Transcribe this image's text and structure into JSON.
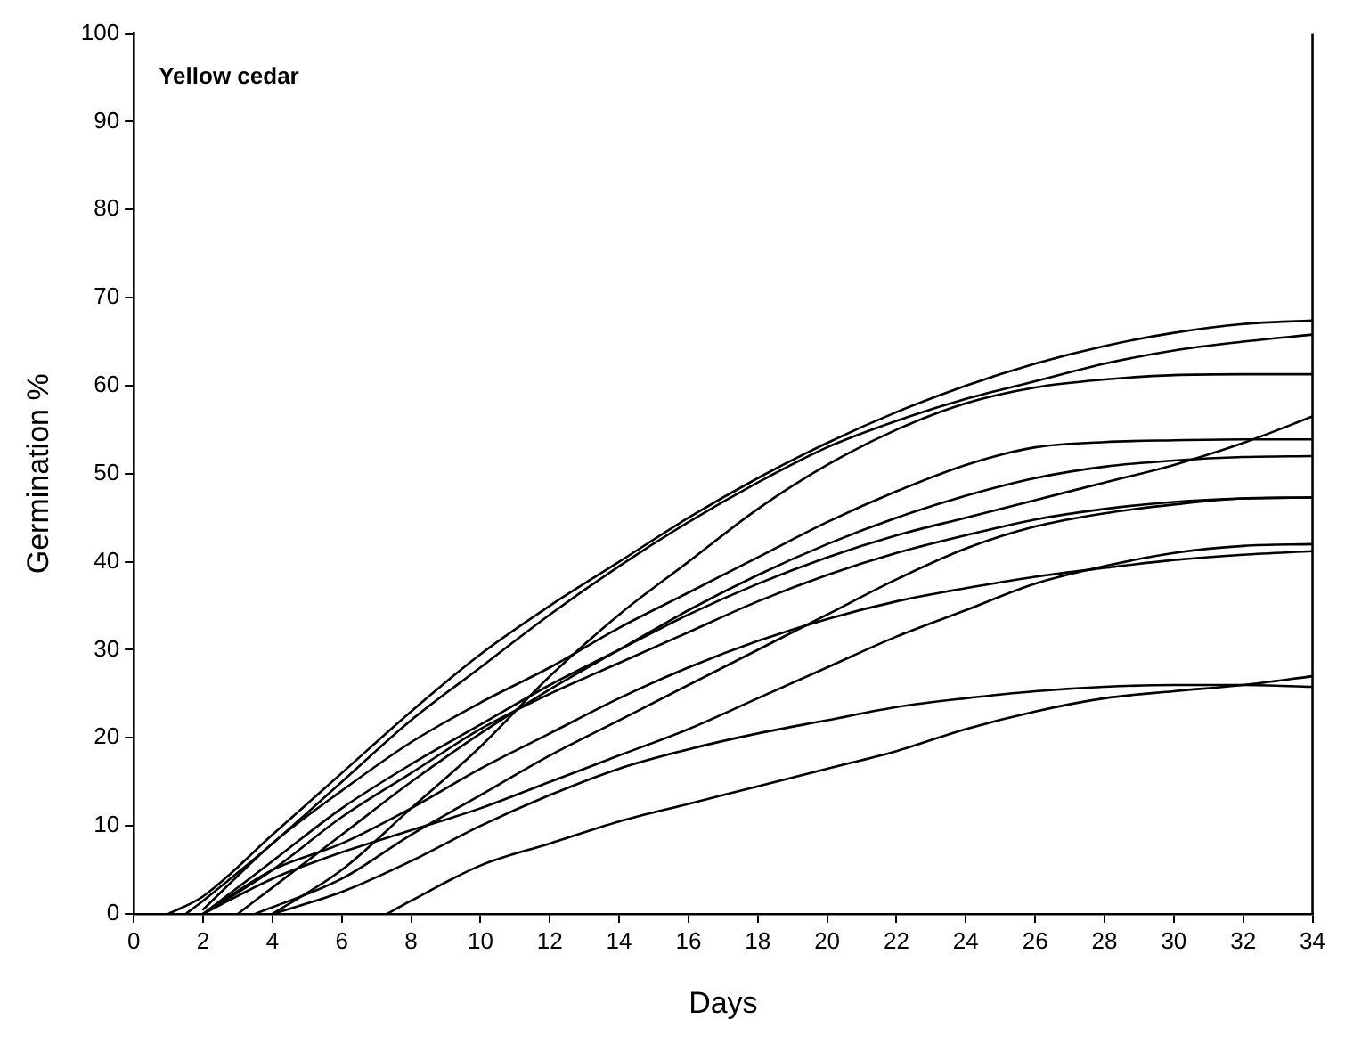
{
  "chart_data": {
    "type": "line",
    "xlabel": "Days",
    "ylabel": "Germination %",
    "annotations": [
      "Yellow cedar"
    ],
    "xlim": [
      0,
      34
    ],
    "xticks": [
      0,
      2,
      4,
      6,
      8,
      10,
      12,
      14,
      16,
      18,
      20,
      22,
      24,
      26,
      28,
      30,
      32,
      34
    ],
    "ylim": [
      0,
      100
    ],
    "yticks": [
      0,
      10,
      20,
      30,
      40,
      50,
      60,
      70,
      80,
      90,
      100
    ],
    "grid": false,
    "legend": false,
    "marker": "none",
    "line_style": "solid",
    "series": [
      {
        "color": "#000000",
        "x": [
          1,
          2,
          4,
          6,
          8,
          10,
          12,
          14,
          16,
          18,
          20,
          22,
          24,
          26,
          28,
          30,
          32,
          34
        ],
        "values": [
          0,
          2,
          9,
          16,
          23,
          29.5,
          35,
          40,
          45,
          49.5,
          53.5,
          57,
          60,
          62.5,
          64.5,
          66,
          67,
          67.4
        ]
      },
      {
        "color": "#000000",
        "x": [
          1.5,
          2,
          4,
          6,
          8,
          10,
          12,
          14,
          16,
          18,
          20,
          22,
          24,
          26,
          28,
          30,
          32,
          34
        ],
        "values": [
          0,
          1.5,
          8,
          15,
          22,
          28,
          34,
          39.5,
          44.5,
          49,
          53,
          56,
          58.5,
          60.5,
          62.5,
          64,
          65,
          65.8
        ]
      },
      {
        "color": "#000000",
        "x": [
          4,
          6,
          8,
          10,
          12,
          14,
          16,
          18,
          20,
          22,
          24,
          26,
          28,
          30,
          32,
          34
        ],
        "values": [
          0,
          5,
          12,
          19,
          27,
          34,
          40,
          46,
          51,
          55,
          58,
          59.8,
          60.7,
          61.2,
          61.3,
          61.3
        ]
      },
      {
        "color": "#000000",
        "x": [
          2,
          4,
          6,
          8,
          10,
          12,
          14,
          16,
          18,
          20,
          22,
          24,
          26,
          28,
          30,
          32,
          34
        ],
        "values": [
          0,
          6,
          12,
          17,
          21.5,
          26,
          30,
          34,
          37.5,
          40.5,
          43,
          45,
          47,
          49,
          51,
          53.5,
          56.5
        ]
      },
      {
        "color": "#000000",
        "x": [
          2,
          4,
          6,
          8,
          10,
          12,
          14,
          16,
          18,
          20,
          22,
          24,
          26,
          28,
          30,
          32,
          34
        ],
        "values": [
          0.5,
          8,
          14,
          19.5,
          24,
          28,
          32.5,
          36.5,
          40.5,
          44.5,
          48,
          51,
          53,
          53.6,
          53.8,
          53.9,
          53.9
        ]
      },
      {
        "color": "#000000",
        "x": [
          3,
          4,
          6,
          8,
          10,
          12,
          14,
          16,
          18,
          20,
          22,
          24,
          26,
          28,
          30,
          32,
          34
        ],
        "values": [
          0,
          3,
          9,
          15,
          20.5,
          25.5,
          30,
          34.5,
          38.5,
          42,
          45,
          47.5,
          49.5,
          50.8,
          51.5,
          51.9,
          52
        ]
      },
      {
        "color": "#000000",
        "x": [
          2,
          4,
          6,
          8,
          10,
          12,
          14,
          16,
          18,
          20,
          22,
          24,
          26,
          28,
          30,
          32,
          34
        ],
        "values": [
          0,
          5,
          11,
          16,
          21,
          25,
          28.5,
          32,
          35.5,
          38.5,
          41,
          43,
          44.8,
          46,
          46.8,
          47.2,
          47.3
        ]
      },
      {
        "color": "#000000",
        "x": [
          3.5,
          6,
          8,
          10,
          12,
          14,
          16,
          18,
          20,
          22,
          24,
          26,
          28,
          30,
          32,
          34
        ],
        "values": [
          0,
          4,
          9,
          13.5,
          18,
          22,
          26,
          30,
          34,
          38,
          41.5,
          44,
          45.5,
          46.5,
          47.2,
          47.3
        ]
      },
      {
        "color": "#000000",
        "x": [
          2,
          4,
          6,
          8,
          10,
          12,
          14,
          16,
          18,
          20,
          22,
          24,
          26,
          28,
          30,
          32,
          34
        ],
        "values": [
          0,
          4,
          7,
          9.5,
          12,
          15,
          18,
          21,
          24.5,
          28,
          31.5,
          34.5,
          37.5,
          39.5,
          41,
          41.8,
          42
        ]
      },
      {
        "color": "#000000",
        "x": [
          2,
          4,
          6,
          8,
          10,
          12,
          14,
          16,
          18,
          20,
          22,
          24,
          26,
          28,
          30,
          32,
          34
        ],
        "values": [
          0,
          5,
          8,
          12,
          16.5,
          20.5,
          24.5,
          28,
          31,
          33.5,
          35.5,
          37,
          38.3,
          39.3,
          40.2,
          40.8,
          41.2
        ]
      },
      {
        "color": "#000000",
        "x": [
          7.3,
          8,
          10,
          12,
          14,
          16,
          18,
          20,
          22,
          24,
          26,
          28,
          30,
          32,
          34
        ],
        "values": [
          0,
          1.5,
          5.5,
          8,
          10.5,
          12.5,
          14.5,
          16.5,
          18.5,
          21,
          23,
          24.5,
          25.3,
          26,
          27
        ]
      },
      {
        "color": "#000000",
        "x": [
          4,
          6,
          8,
          10,
          12,
          14,
          16,
          18,
          20,
          22,
          24,
          26,
          28,
          30,
          32,
          34
        ],
        "values": [
          0,
          2.5,
          6,
          10,
          13.5,
          16.5,
          18.7,
          20.5,
          22,
          23.5,
          24.5,
          25.3,
          25.8,
          26,
          26,
          25.8
        ]
      }
    ]
  }
}
